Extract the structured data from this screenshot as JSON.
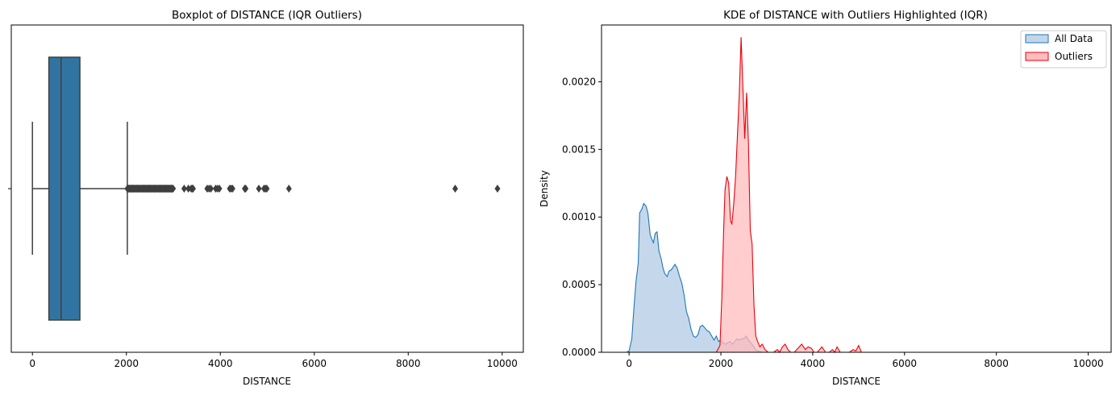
{
  "chart_data": [
    {
      "type": "box",
      "title": "Boxplot of DISTANCE (IQR Outliers)",
      "xlabel": "DISTANCE",
      "ylabel": "",
      "xlim": [
        -450,
        10450
      ],
      "xticks": [
        0,
        2000,
        4000,
        6000,
        8000,
        10000
      ],
      "xtick_labels": [
        "0",
        "2000",
        "4000",
        "6000",
        "8000",
        "10000"
      ],
      "box_color": "#3274a1",
      "line_color": "#3f3f3f",
      "stats": {
        "whisker_low": 0,
        "q1": 350,
        "median": 610,
        "q3": 1010,
        "whisker_high": 2020
      },
      "outlier_band": [
        2020,
        3000
      ],
      "outliers": [
        3230,
        3320,
        3380,
        3400,
        3420,
        3720,
        3760,
        3800,
        3900,
        3940,
        3980,
        4200,
        4230,
        4260,
        4520,
        4540,
        4820,
        4930,
        4960,
        4990,
        5460,
        9000,
        9900
      ]
    },
    {
      "type": "area",
      "title": "KDE of DISTANCE with Outliers Highlighted (IQR)",
      "xlabel": "DISTANCE",
      "ylabel": "Density",
      "xlim": [
        -600,
        10500
      ],
      "ylim": [
        0,
        0.00242
      ],
      "xticks": [
        0,
        2000,
        4000,
        6000,
        8000,
        10000
      ],
      "xtick_labels": [
        "0",
        "2000",
        "4000",
        "6000",
        "8000",
        "10000"
      ],
      "yticks": [
        0,
        0.0005,
        0.001,
        0.0015,
        0.002
      ],
      "ytick_labels": [
        "0.0000",
        "0.0005",
        "0.0010",
        "0.0015",
        "0.0020"
      ],
      "legend_position": "top-right",
      "series": [
        {
          "name": "All Data",
          "line": "#1f77b4",
          "fill": "#c2d6ea",
          "points": [
            [
              -60,
              0
            ],
            [
              0,
              1e-05
            ],
            [
              60,
              0.0001
            ],
            [
              100,
              0.0003
            ],
            [
              150,
              0.00052
            ],
            [
              200,
              0.00066
            ],
            [
              230,
              0.00103
            ],
            [
              280,
              0.00106
            ],
            [
              320,
              0.0011
            ],
            [
              370,
              0.00108
            ],
            [
              410,
              0.00103
            ],
            [
              460,
              0.00087
            ],
            [
              490,
              0.00084
            ],
            [
              530,
              0.00081
            ],
            [
              570,
              0.00088
            ],
            [
              610,
              0.00089
            ],
            [
              650,
              0.00075
            ],
            [
              700,
              0.00069
            ],
            [
              740,
              0.00062
            ],
            [
              780,
              0.00058
            ],
            [
              830,
              0.00056
            ],
            [
              870,
              0.0006
            ],
            [
              920,
              0.00061
            ],
            [
              960,
              0.00063
            ],
            [
              1000,
              0.00065
            ],
            [
              1050,
              0.00062
            ],
            [
              1100,
              0.00056
            ],
            [
              1150,
              0.00051
            ],
            [
              1200,
              0.00042
            ],
            [
              1250,
              0.0003
            ],
            [
              1300,
              0.00025
            ],
            [
              1350,
              0.00017
            ],
            [
              1400,
              0.00012
            ],
            [
              1450,
              0.00011
            ],
            [
              1500,
              0.00013
            ],
            [
              1550,
              0.00019
            ],
            [
              1600,
              0.0002
            ],
            [
              1650,
              0.00018
            ],
            [
              1700,
              0.00016
            ],
            [
              1750,
              0.00015
            ],
            [
              1800,
              0.00012
            ],
            [
              1850,
              9e-05
            ],
            [
              1900,
              0.00012
            ],
            [
              1950,
              8e-05
            ],
            [
              2000,
              9e-05
            ],
            [
              2050,
              7e-05
            ],
            [
              2100,
              6e-05
            ],
            [
              2150,
              7e-05
            ],
            [
              2200,
              8e-05
            ],
            [
              2250,
              6e-05
            ],
            [
              2300,
              8e-05
            ],
            [
              2350,
              0.0001
            ],
            [
              2400,
              9e-05
            ],
            [
              2450,
              0.0001
            ],
            [
              2500,
              0.0001
            ],
            [
              2550,
              0.00012
            ],
            [
              2600,
              9e-05
            ],
            [
              2650,
              7e-05
            ],
            [
              2700,
              5e-05
            ],
            [
              2750,
              2e-05
            ],
            [
              2800,
              1e-05
            ],
            [
              2900,
              0
            ],
            [
              10000,
              0
            ]
          ]
        },
        {
          "name": "Outliers",
          "line": "#e8000b",
          "fill": "#ffbcbc",
          "points": [
            [
              1900,
              0
            ],
            [
              1980,
              5e-05
            ],
            [
              2020,
              0.0004
            ],
            [
              2060,
              0.0009
            ],
            [
              2090,
              0.0012
            ],
            [
              2130,
              0.0013
            ],
            [
              2170,
              0.00125
            ],
            [
              2210,
              0.00097
            ],
            [
              2240,
              0.00095
            ],
            [
              2280,
              0.0011
            ],
            [
              2320,
              0.0013
            ],
            [
              2360,
              0.0016
            ],
            [
              2400,
              0.0019
            ],
            [
              2440,
              0.00233
            ],
            [
              2480,
              0.00195
            ],
            [
              2520,
              0.00158
            ],
            [
              2560,
              0.00192
            ],
            [
              2600,
              0.00155
            ],
            [
              2640,
              0.0009
            ],
            [
              2680,
              0.0008
            ],
            [
              2720,
              0.00035
            ],
            [
              2760,
              0.00012
            ],
            [
              2800,
              8e-05
            ],
            [
              2850,
              4e-05
            ],
            [
              2900,
              6e-05
            ],
            [
              2960,
              2e-05
            ],
            [
              3030,
              0
            ],
            [
              3100,
              0
            ],
            [
              3150,
              0
            ],
            [
              3230,
              2e-05
            ],
            [
              3280,
              0
            ],
            [
              3340,
              4e-05
            ],
            [
              3400,
              6e-05
            ],
            [
              3460,
              2e-05
            ],
            [
              3520,
              0
            ],
            [
              3600,
              0
            ],
            [
              3680,
              3e-05
            ],
            [
              3760,
              6e-05
            ],
            [
              3840,
              2e-05
            ],
            [
              3900,
              4e-05
            ],
            [
              3970,
              3e-05
            ],
            [
              4030,
              0
            ],
            [
              4100,
              0
            ],
            [
              4200,
              4e-05
            ],
            [
              4280,
              0
            ],
            [
              4360,
              0
            ],
            [
              4430,
              2e-05
            ],
            [
              4480,
              0
            ],
            [
              4530,
              4e-05
            ],
            [
              4600,
              0
            ],
            [
              4680,
              0
            ],
            [
              4800,
              0
            ],
            [
              4880,
              2e-05
            ],
            [
              4940,
              1e-05
            ],
            [
              5000,
              5e-05
            ],
            [
              5060,
              0
            ],
            [
              5300,
              0
            ],
            [
              10000,
              0
            ]
          ]
        }
      ]
    }
  ]
}
